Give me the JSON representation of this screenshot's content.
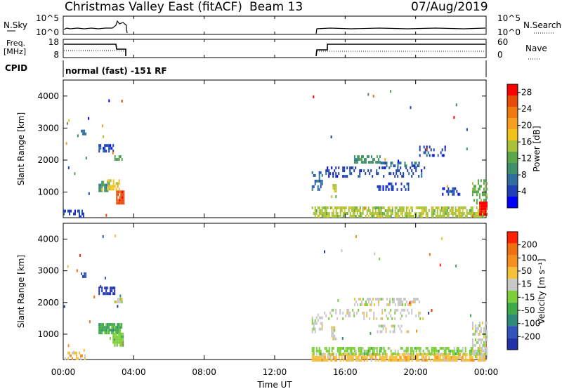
{
  "header": {
    "title": "Christmas Valley East (fitACF)",
    "beam": "Beam 13",
    "date": "07/Aug/2019"
  },
  "panels": {
    "nsky": {
      "left_label": "N.Sky",
      "right_label": "N.Search",
      "left_ticks": [
        "10^5",
        "10^0"
      ],
      "right_ticks": [
        "10^5",
        "10^0"
      ]
    },
    "freq": {
      "left_label": "Freq.",
      "left_unit": "[MHz]",
      "right_label": "Nave",
      "left_ticks": [
        "18",
        "8"
      ],
      "right_ticks": [
        "60",
        "0"
      ]
    },
    "cpid": {
      "label": "CPID",
      "text": "normal (fast) -151 RF"
    }
  },
  "colors": {
    "power_scale": [
      "#0000ff",
      "#1f3fb4",
      "#2f6fa0",
      "#3f8f6a",
      "#5aa64a",
      "#a8c23a",
      "#f2c21a",
      "#f5a020",
      "#f07a10",
      "#e84a08",
      "#ff0000"
    ],
    "velocity_scale": [
      "#2233aa",
      "#3355bb",
      "#2f8a7a",
      "#3faa4a",
      "#7dcf3a",
      "#c8c8c8",
      "#f5c03a",
      "#f59020",
      "#f07010",
      "#ff2200"
    ],
    "axis": "#000000"
  },
  "chart_data": [
    {
      "type": "heatmap",
      "name": "power",
      "ylabel": "Slant Range [km]",
      "yticks": [
        "1000",
        "2000",
        "3000",
        "4000"
      ],
      "ylim": [
        200,
        4500
      ],
      "xlim": [
        0,
        24
      ],
      "xticks": [
        "00:00",
        "04:00",
        "08:00",
        "12:00",
        "16:00",
        "20:00",
        "00:00"
      ],
      "colorbar": {
        "label": "Power [dB]",
        "ticks": [
          "4",
          "8",
          "12",
          "16",
          "20",
          "24",
          "28"
        ],
        "range": [
          0,
          30
        ]
      },
      "patches": [
        {
          "t": [
            0.0,
            1.2
          ],
          "r": [
            250,
            450
          ],
          "color": 1,
          "density": 0.5
        },
        {
          "t": [
            1.0,
            1.3
          ],
          "r": [
            2850,
            2950
          ],
          "color": 2,
          "density": 0.7
        },
        {
          "t": [
            2.0,
            2.9
          ],
          "r": [
            2300,
            2500
          ],
          "color": 1,
          "density": 0.6
        },
        {
          "t": [
            2.9,
            3.3
          ],
          "r": [
            2050,
            2150
          ],
          "color": 4,
          "density": 0.8
        },
        {
          "t": [
            2.0,
            2.6
          ],
          "r": [
            1000,
            1350
          ],
          "color": 3,
          "density": 0.8
        },
        {
          "t": [
            2.5,
            3.2
          ],
          "r": [
            1050,
            1400
          ],
          "color": 6,
          "density": 0.8
        },
        {
          "t": [
            3.0,
            3.4
          ],
          "r": [
            650,
            1050
          ],
          "color": 9,
          "density": 0.9
        },
        {
          "t": [
            14.1,
            14.7
          ],
          "r": [
            1050,
            1650
          ],
          "color": 2,
          "density": 0.45
        },
        {
          "t": [
            14.1,
            24.0
          ],
          "r": [
            200,
            550
          ],
          "color": 5,
          "density": 0.7
        },
        {
          "t": [
            15.2,
            15.5
          ],
          "r": [
            850,
            1250
          ],
          "color": 5,
          "density": 0.8
        },
        {
          "t": [
            14.8,
            20.5
          ],
          "r": [
            1500,
            1800
          ],
          "color": 1,
          "density": 0.3
        },
        {
          "t": [
            16.5,
            18.0
          ],
          "r": [
            1950,
            2150
          ],
          "color": 3,
          "density": 0.6
        },
        {
          "t": [
            18.0,
            20.2
          ],
          "r": [
            1800,
            1950
          ],
          "color": 2,
          "density": 0.5
        },
        {
          "t": [
            17.8,
            19.6
          ],
          "r": [
            1100,
            1300
          ],
          "color": 1,
          "density": 0.45
        },
        {
          "t": [
            20.2,
            22.0
          ],
          "r": [
            2100,
            2450
          ],
          "color": 1,
          "density": 0.25
        },
        {
          "t": [
            21.5,
            22.5
          ],
          "r": [
            900,
            1150
          ],
          "color": 1,
          "density": 0.5
        },
        {
          "t": [
            23.2,
            24.0
          ],
          "r": [
            650,
            1400
          ],
          "color": 4,
          "density": 0.6
        },
        {
          "t": [
            23.6,
            24.0
          ],
          "r": [
            300,
            700
          ],
          "color": 10,
          "density": 0.9
        }
      ]
    },
    {
      "type": "heatmap",
      "name": "velocity",
      "ylabel": "Slant Range [km]",
      "yticks": [
        "1000",
        "2000",
        "3000",
        "4000"
      ],
      "ylim": [
        200,
        4500
      ],
      "xlim": [
        0,
        24
      ],
      "xticks": [
        "00:00",
        "04:00",
        "08:00",
        "12:00",
        "16:00",
        "20:00",
        "00:00"
      ],
      "xlabel": "Time UT",
      "colorbar": {
        "label": "Velocity [m s⁻¹]",
        "ticks": [
          "200",
          "100",
          "50",
          "15",
          "-15",
          "-50",
          "-100",
          "-200"
        ],
        "range": [
          -250,
          250
        ]
      },
      "patches": [
        {
          "t": [
            0.0,
            1.2
          ],
          "r": [
            250,
            450
          ],
          "color": 6,
          "density": 0.5
        },
        {
          "t": [
            1.0,
            1.3
          ],
          "r": [
            2850,
            2950
          ],
          "color": 1,
          "density": 0.7
        },
        {
          "t": [
            2.0,
            2.9
          ],
          "r": [
            2250,
            2500
          ],
          "color": 0,
          "density": 0.6
        },
        {
          "t": [
            2.9,
            3.3
          ],
          "r": [
            2000,
            2150
          ],
          "color": 5,
          "density": 0.8
        },
        {
          "t": [
            2.0,
            3.3
          ],
          "r": [
            1000,
            1350
          ],
          "color": 3,
          "density": 0.85
        },
        {
          "t": [
            2.8,
            3.4
          ],
          "r": [
            650,
            1050
          ],
          "color": 4,
          "density": 0.9
        },
        {
          "t": [
            14.1,
            14.7
          ],
          "r": [
            1050,
            1650
          ],
          "color": 5,
          "density": 0.45
        },
        {
          "t": [
            14.1,
            24.0
          ],
          "r": [
            200,
            400
          ],
          "color": 6,
          "density": 0.75
        },
        {
          "t": [
            14.1,
            24.0
          ],
          "r": [
            400,
            600
          ],
          "color": 4,
          "density": 0.55
        },
        {
          "t": [
            15.2,
            15.5
          ],
          "r": [
            850,
            1250
          ],
          "color": 5,
          "density": 0.8
        },
        {
          "t": [
            14.8,
            20.5
          ],
          "r": [
            1500,
            1800
          ],
          "color": 5,
          "density": 0.3
        },
        {
          "t": [
            16.5,
            20.2
          ],
          "r": [
            1900,
            2150
          ],
          "color": 5,
          "density": 0.5
        },
        {
          "t": [
            17.8,
            19.6
          ],
          "r": [
            1100,
            1300
          ],
          "color": 5,
          "density": 0.45
        },
        {
          "t": [
            23.2,
            24.0
          ],
          "r": [
            300,
            1400
          ],
          "color": 5,
          "density": 0.6
        }
      ]
    }
  ]
}
